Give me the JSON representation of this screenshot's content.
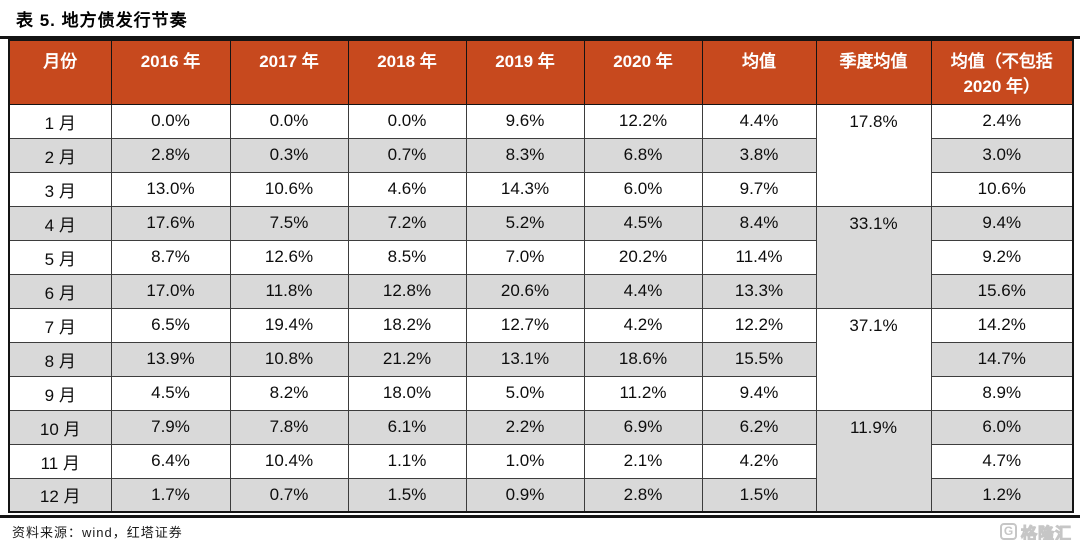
{
  "title": "表 5. 地方债发行节奏",
  "table": {
    "headers": [
      "月份",
      "2016 年",
      "2017 年",
      "2018 年",
      "2019 年",
      "2020 年",
      "均值",
      "季度均值",
      "均值（不包括 2020 年）"
    ],
    "rows": [
      {
        "month": "1 月",
        "v2016": "0.0%",
        "v2017": "0.0%",
        "v2018": "0.0%",
        "v2019": "9.6%",
        "v2020": "12.2%",
        "avg": "4.4%",
        "avg_ex2020": "2.4%"
      },
      {
        "month": "2 月",
        "v2016": "2.8%",
        "v2017": "0.3%",
        "v2018": "0.7%",
        "v2019": "8.3%",
        "v2020": "6.8%",
        "avg": "3.8%",
        "avg_ex2020": "3.0%"
      },
      {
        "month": "3 月",
        "v2016": "13.0%",
        "v2017": "10.6%",
        "v2018": "4.6%",
        "v2019": "14.3%",
        "v2020": "6.0%",
        "avg": "9.7%",
        "avg_ex2020": "10.6%"
      },
      {
        "month": "4 月",
        "v2016": "17.6%",
        "v2017": "7.5%",
        "v2018": "7.2%",
        "v2019": "5.2%",
        "v2020": "4.5%",
        "avg": "8.4%",
        "avg_ex2020": "9.4%"
      },
      {
        "month": "5 月",
        "v2016": "8.7%",
        "v2017": "12.6%",
        "v2018": "8.5%",
        "v2019": "7.0%",
        "v2020": "20.2%",
        "avg": "11.4%",
        "avg_ex2020": "9.2%"
      },
      {
        "month": "6 月",
        "v2016": "17.0%",
        "v2017": "11.8%",
        "v2018": "12.8%",
        "v2019": "20.6%",
        "v2020": "4.4%",
        "avg": "13.3%",
        "avg_ex2020": "15.6%"
      },
      {
        "month": "7 月",
        "v2016": "6.5%",
        "v2017": "19.4%",
        "v2018": "18.2%",
        "v2019": "12.7%",
        "v2020": "4.2%",
        "avg": "12.2%",
        "avg_ex2020": "14.2%"
      },
      {
        "month": "8 月",
        "v2016": "13.9%",
        "v2017": "10.8%",
        "v2018": "21.2%",
        "v2019": "13.1%",
        "v2020": "18.6%",
        "avg": "15.5%",
        "avg_ex2020": "14.7%"
      },
      {
        "month": "9 月",
        "v2016": "4.5%",
        "v2017": "8.2%",
        "v2018": "18.0%",
        "v2019": "5.0%",
        "v2020": "11.2%",
        "avg": "9.4%",
        "avg_ex2020": "8.9%"
      },
      {
        "month": "10 月",
        "v2016": "7.9%",
        "v2017": "7.8%",
        "v2018": "6.1%",
        "v2019": "2.2%",
        "v2020": "6.9%",
        "avg": "6.2%",
        "avg_ex2020": "6.0%"
      },
      {
        "month": "11 月",
        "v2016": "6.4%",
        "v2017": "10.4%",
        "v2018": "1.1%",
        "v2019": "1.0%",
        "v2020": "2.1%",
        "avg": "4.2%",
        "avg_ex2020": "4.7%"
      },
      {
        "month": "12 月",
        "v2016": "1.7%",
        "v2017": "0.7%",
        "v2018": "1.5%",
        "v2019": "0.9%",
        "v2020": "2.8%",
        "avg": "1.5%",
        "avg_ex2020": "1.2%"
      }
    ],
    "quarter_avgs": [
      "17.8%",
      "33.1%",
      "37.1%",
      "11.9%"
    ]
  },
  "footer": {
    "source": "资料来源：wind，红塔证券",
    "logo_letter": "G",
    "logo_text": "格隆汇"
  },
  "colors": {
    "header_bg": "#C7491E",
    "stripe": "#D9D9D9"
  }
}
